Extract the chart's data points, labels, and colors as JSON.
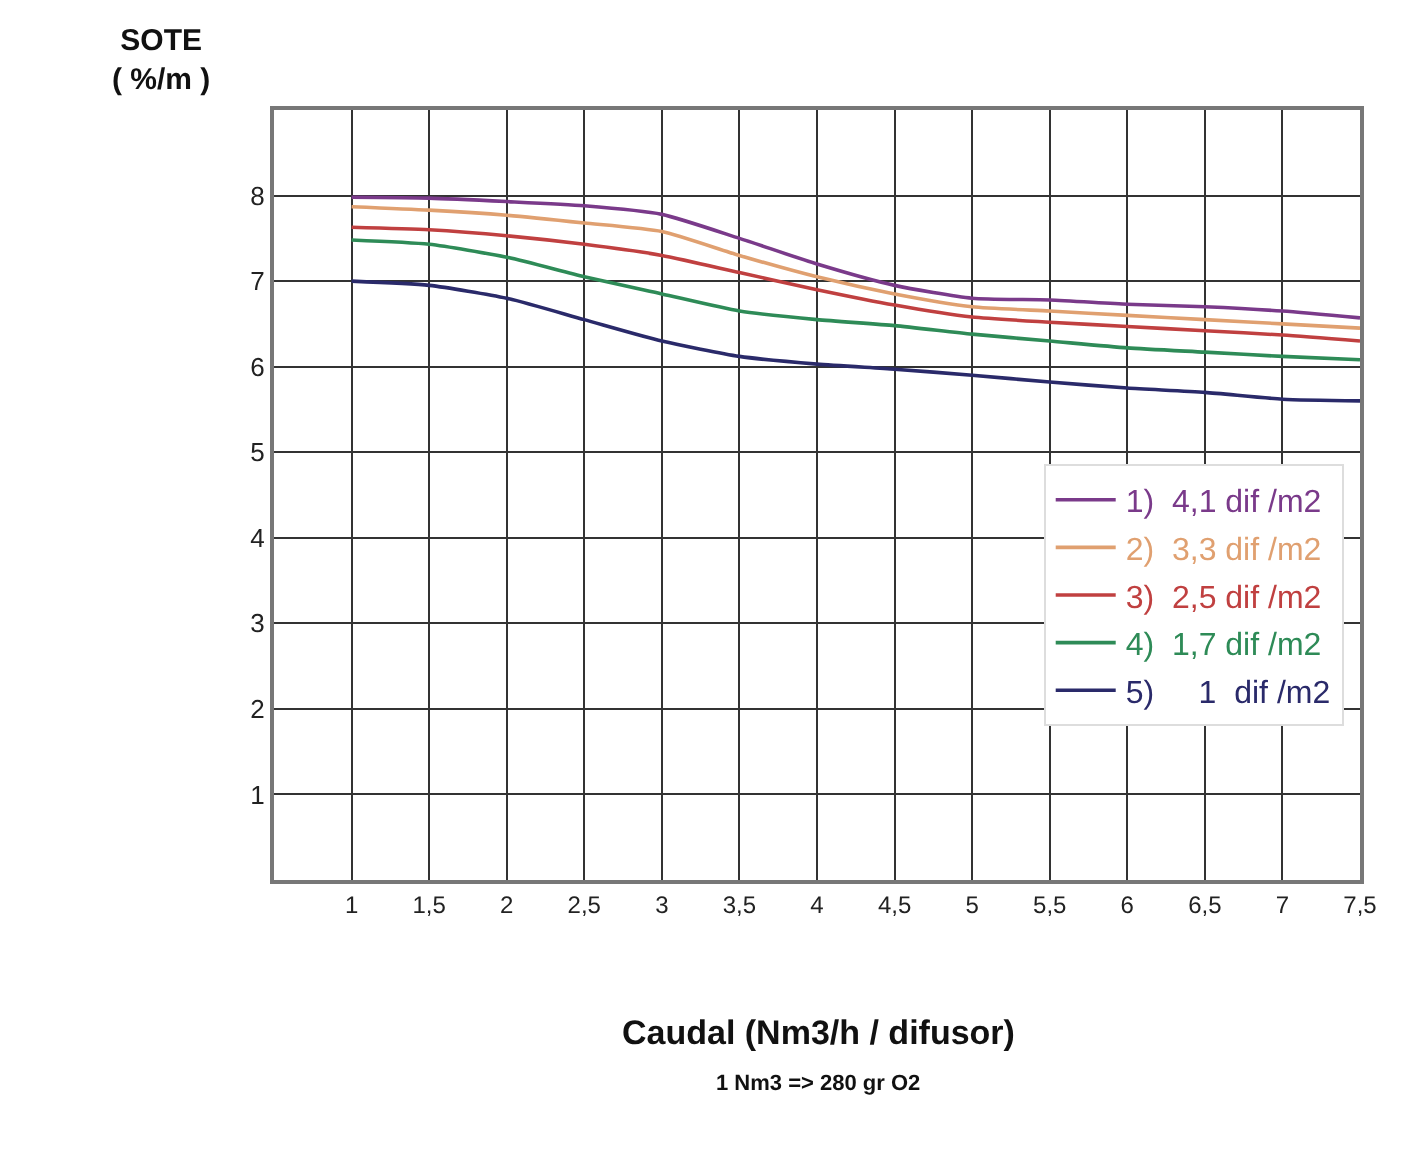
{
  "chart_data": {
    "type": "line",
    "ylabel": "SOTE\n( %/m )",
    "xlabel": "Caudal (Nm3/h / difusor)",
    "annotations": [
      "1 Nm3 => 280 gr O2"
    ],
    "x": [
      1,
      1.5,
      2,
      2.5,
      3,
      3.5,
      4,
      4.5,
      5,
      5.5,
      6,
      6.5,
      7,
      7.5
    ],
    "series": [
      {
        "name": "1)  4,1 dif /m2",
        "color": "#7a3a8a",
        "values": [
          7.98,
          7.97,
          7.93,
          7.88,
          7.78,
          7.5,
          7.2,
          6.95,
          6.8,
          6.78,
          6.73,
          6.7,
          6.65,
          6.57
        ]
      },
      {
        "name": "2)  3,3 dif /m2",
        "color": "#e0a070",
        "values": [
          7.87,
          7.83,
          7.77,
          7.68,
          7.58,
          7.3,
          7.05,
          6.85,
          6.7,
          6.65,
          6.6,
          6.55,
          6.5,
          6.45
        ]
      },
      {
        "name": "3)  2,5 dif /m2",
        "color": "#c04040",
        "values": [
          7.63,
          7.6,
          7.53,
          7.43,
          7.3,
          7.1,
          6.9,
          6.72,
          6.58,
          6.52,
          6.47,
          6.42,
          6.37,
          6.3
        ]
      },
      {
        "name": "4)  1,7 dif /m2",
        "color": "#2e8b57",
        "values": [
          7.48,
          7.43,
          7.28,
          7.05,
          6.85,
          6.65,
          6.55,
          6.48,
          6.38,
          6.3,
          6.22,
          6.17,
          6.12,
          6.08
        ]
      },
      {
        "name": "5)     1  dif /m2",
        "color": "#2a2a6a",
        "values": [
          7.0,
          6.95,
          6.8,
          6.55,
          6.3,
          6.12,
          6.03,
          5.97,
          5.9,
          5.82,
          5.75,
          5.7,
          5.62,
          5.6
        ]
      }
    ],
    "xlim": [
      0.5,
      7.5
    ],
    "xticks": [
      1,
      {
        "value": 1.5,
        "label": "1,5"
      },
      2,
      {
        "value": 2.5,
        "label": "2,5"
      },
      3,
      {
        "value": 3.5,
        "label": "3,5"
      },
      4,
      {
        "value": 4.5,
        "label": "4,5"
      },
      5,
      {
        "value": 5.5,
        "label": "5,5"
      },
      6,
      {
        "value": 6.5,
        "label": "6,5"
      },
      7,
      {
        "value": 7.5,
        "label": "7,5"
      }
    ],
    "ylim": [
      0,
      9
    ],
    "yticks": [
      1,
      2,
      3,
      4,
      5,
      6,
      7,
      8
    ],
    "grid": true,
    "legend": "bottom right",
    "marker": "none",
    "line_style": "solid"
  }
}
